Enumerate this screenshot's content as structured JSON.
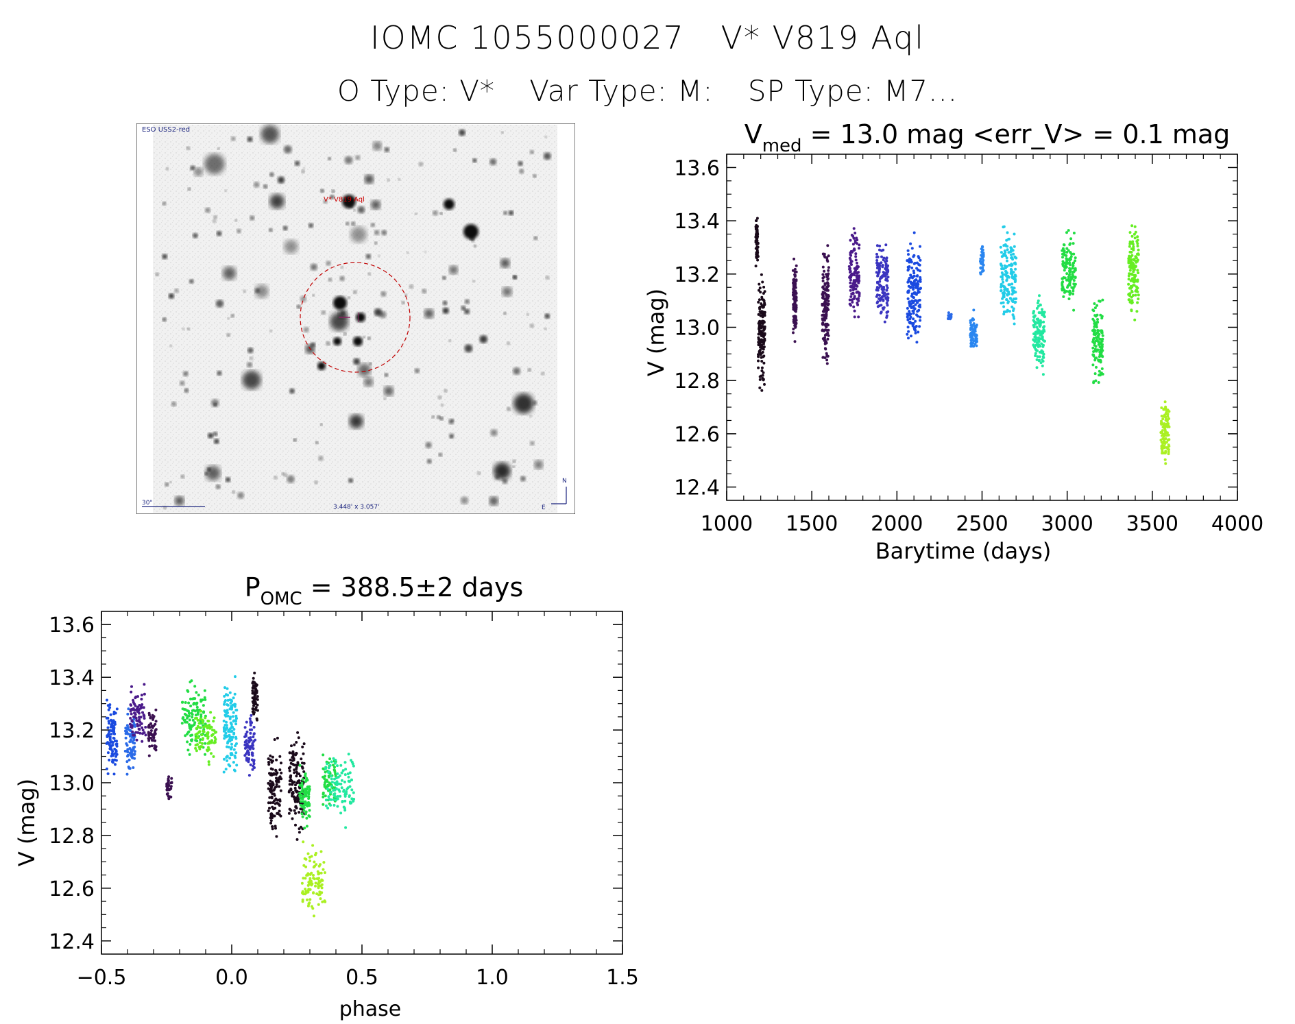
{
  "header": {
    "source_id": "IOMC 1055000027",
    "star_name": "V* V819 Aql",
    "o_type": "O Type: V*",
    "var_type": "Var Type: M:",
    "sp_type": "SP Type: M7..."
  },
  "finder": {
    "survey": "ESO USS2-red",
    "target_label": "V* V819 Aql",
    "scale_label": "30\"",
    "fov_label": "3.448' x 3.057'",
    "north": "N",
    "east": "E"
  },
  "chart_data": [
    {
      "type": "scatter",
      "id": "light-curve",
      "title_prefix": "V",
      "title_sub": "med",
      "title_rest": " = 13.0 mag <err_V> = 0.1 mag",
      "xlabel": "Barytime (days)",
      "ylabel": "V (mag)",
      "xlim": [
        1000,
        4000
      ],
      "ylim": [
        13.65,
        12.35
      ],
      "xticks": [
        1000,
        1500,
        2000,
        2500,
        3000,
        3500,
        4000
      ],
      "yticks": [
        12.4,
        12.6,
        12.8,
        13.0,
        13.2,
        13.4,
        13.6
      ],
      "y_reversed": true,
      "series": [
        {
          "name": "g1",
          "color": "#1a0a1a",
          "segments": [
            [
              1170,
              1185,
              13.2,
              13.44
            ],
            [
              1185,
              1225,
              12.72,
              13.25
            ]
          ]
        },
        {
          "name": "g2",
          "color": "#3a1050",
          "segments": [
            [
              1390,
              1410,
              12.92,
              13.3
            ],
            [
              1560,
              1600,
              12.81,
              13.37
            ]
          ]
        },
        {
          "name": "g3",
          "color": "#4a1a8a",
          "segments": [
            [
              1720,
              1780,
              12.98,
              13.4
            ]
          ]
        },
        {
          "name": "g4",
          "color": "#3a34c0",
          "segments": [
            [
              1880,
              1950,
              12.94,
              13.36
            ]
          ]
        },
        {
          "name": "g5",
          "color": "#1a4ae0",
          "segments": [
            [
              2060,
              2140,
              12.86,
              13.39
            ]
          ]
        },
        {
          "name": "g6",
          "color": "#2a6ae8",
          "segments": [
            [
              2300,
              2320,
              13.02,
              13.06
            ]
          ]
        },
        {
          "name": "g7",
          "color": "#2a86f0",
          "segments": [
            [
              2430,
              2470,
              12.88,
              13.08
            ],
            [
              2490,
              2510,
              13.18,
              13.32
            ]
          ]
        },
        {
          "name": "g8",
          "color": "#22cce8",
          "segments": [
            [
              2610,
              2700,
              12.94,
              13.45
            ]
          ]
        },
        {
          "name": "g9",
          "color": "#22e8a0",
          "segments": [
            [
              2800,
              2870,
              12.78,
              13.17
            ]
          ]
        },
        {
          "name": "g10",
          "color": "#22dd44",
          "segments": [
            [
              2970,
              3050,
              13.04,
              13.4
            ],
            [
              3150,
              3210,
              12.74,
              13.14
            ]
          ]
        },
        {
          "name": "g11",
          "color": "#66ee22",
          "segments": [
            [
              3360,
              3420,
              13.0,
              13.44
            ]
          ]
        },
        {
          "name": "g12",
          "color": "#aaf022",
          "segments": [
            [
              3550,
              3600,
              12.45,
              12.78
            ]
          ]
        }
      ]
    },
    {
      "type": "scatter",
      "id": "phased-curve",
      "title_prefix": "P",
      "title_sub": "OMC",
      "title_rest": " = 388.5±2 days",
      "period_days": 388.5,
      "period_err_days": 2,
      "xlabel": "phase",
      "ylabel": "V (mag)",
      "xlim": [
        -0.5,
        1.5
      ],
      "ylim": [
        13.65,
        12.35
      ],
      "xticks": [
        -0.5,
        0.0,
        0.5,
        1.0,
        1.5
      ],
      "xticklabels": [
        "−0.5",
        "0.0",
        "0.5",
        "1.0",
        "1.5"
      ],
      "yticks": [
        12.4,
        12.6,
        12.8,
        13.0,
        13.2,
        13.4,
        13.6
      ],
      "y_reversed": true,
      "series": [
        {
          "name": "p1",
          "color": "#1a4ae0",
          "segments": [
            [
              -0.48,
              -0.44,
              12.98,
              13.35
            ]
          ]
        },
        {
          "name": "p2",
          "color": "#2a6ae8",
          "segments": [
            [
              -0.41,
              -0.37,
              13.0,
              13.3
            ]
          ]
        },
        {
          "name": "p3",
          "color": "#4a1a8a",
          "segments": [
            [
              -0.39,
              -0.33,
              13.1,
              13.4
            ]
          ]
        },
        {
          "name": "p4",
          "color": "#3a1050",
          "segments": [
            [
              -0.32,
              -0.29,
              13.08,
              13.3
            ],
            [
              -0.25,
              -0.23,
              12.92,
              13.05
            ]
          ]
        },
        {
          "name": "p5",
          "color": "#22dd44",
          "segments": [
            [
              -0.19,
              -0.1,
              13.05,
              13.44
            ]
          ]
        },
        {
          "name": "p6",
          "color": "#66ee22",
          "segments": [
            [
              -0.14,
              -0.06,
              13.05,
              13.32
            ]
          ]
        },
        {
          "name": "p7",
          "color": "#22cce8",
          "segments": [
            [
              -0.03,
              0.02,
              12.95,
              13.45
            ]
          ]
        },
        {
          "name": "p8",
          "color": "#3a34c0",
          "segments": [
            [
              0.05,
              0.09,
              13.0,
              13.3
            ]
          ]
        },
        {
          "name": "p9",
          "color": "#1a0a1a",
          "segments": [
            [
              0.08,
              0.1,
              13.2,
              13.44
            ],
            [
              0.14,
              0.19,
              12.73,
              13.2
            ],
            [
              0.22,
              0.28,
              12.75,
              13.25
            ]
          ]
        },
        {
          "name": "p10",
          "color": "#aaf022",
          "segments": [
            [
              0.27,
              0.36,
              12.45,
              12.8
            ]
          ]
        },
        {
          "name": "p11",
          "color": "#22dd44",
          "segments": [
            [
              0.26,
              0.3,
              12.8,
              13.1
            ],
            [
              0.35,
              0.4,
              12.9,
              13.12
            ]
          ]
        },
        {
          "name": "p12",
          "color": "#22e8a0",
          "segments": [
            [
              0.36,
              0.47,
              12.82,
              13.15
            ]
          ]
        }
      ]
    }
  ]
}
